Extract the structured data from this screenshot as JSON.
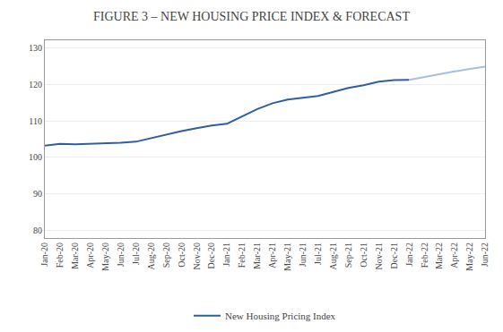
{
  "chart_data": {
    "type": "line",
    "title": "FIGURE 3 – NEW HOUSING PRICE INDEX & FORECAST",
    "categories": [
      "Jan-20",
      "Feb-20",
      "Mar-20",
      "Apr-20",
      "May-20",
      "Jun-20",
      "Jul-20",
      "Aug-20",
      "Sep-20",
      "Oct-20",
      "Nov-20",
      "Dec-20",
      "Jan-21",
      "Feb-21",
      "Mar-21",
      "Apr-21",
      "May-21",
      "Jun-21",
      "Jul-21",
      "Aug-21",
      "Sep-21",
      "Oct-21",
      "Nov-21",
      "Dec-21",
      "Jan-22",
      "Feb-22",
      "Mar-22",
      "Apr-22",
      "May-22",
      "Jun-22"
    ],
    "series": [
      {
        "name": "New Housing Pricing Index",
        "color": "#2e5fa3",
        "values": [
          103.2,
          103.7,
          103.6,
          103.7,
          103.8,
          104.0,
          104.3,
          105.3,
          106.3,
          107.2,
          108.0,
          108.7,
          109.2,
          111.3,
          113.2,
          114.8,
          115.8,
          116.3,
          116.8,
          117.9,
          119.0,
          119.7,
          120.7,
          121.1,
          121.2,
          null,
          null,
          null,
          null,
          null
        ]
      },
      {
        "color": "#a8bfdf",
        "values": [
          null,
          null,
          null,
          null,
          null,
          null,
          null,
          null,
          null,
          null,
          null,
          null,
          null,
          null,
          null,
          null,
          null,
          null,
          null,
          null,
          null,
          null,
          null,
          null,
          121.2,
          122.0,
          122.8,
          123.5,
          124.2,
          124.8
        ]
      }
    ],
    "ylim": [
      78,
      132
    ],
    "yticks": [
      80,
      90,
      100,
      110,
      120,
      130
    ],
    "grid": true,
    "legend": "bottom"
  }
}
